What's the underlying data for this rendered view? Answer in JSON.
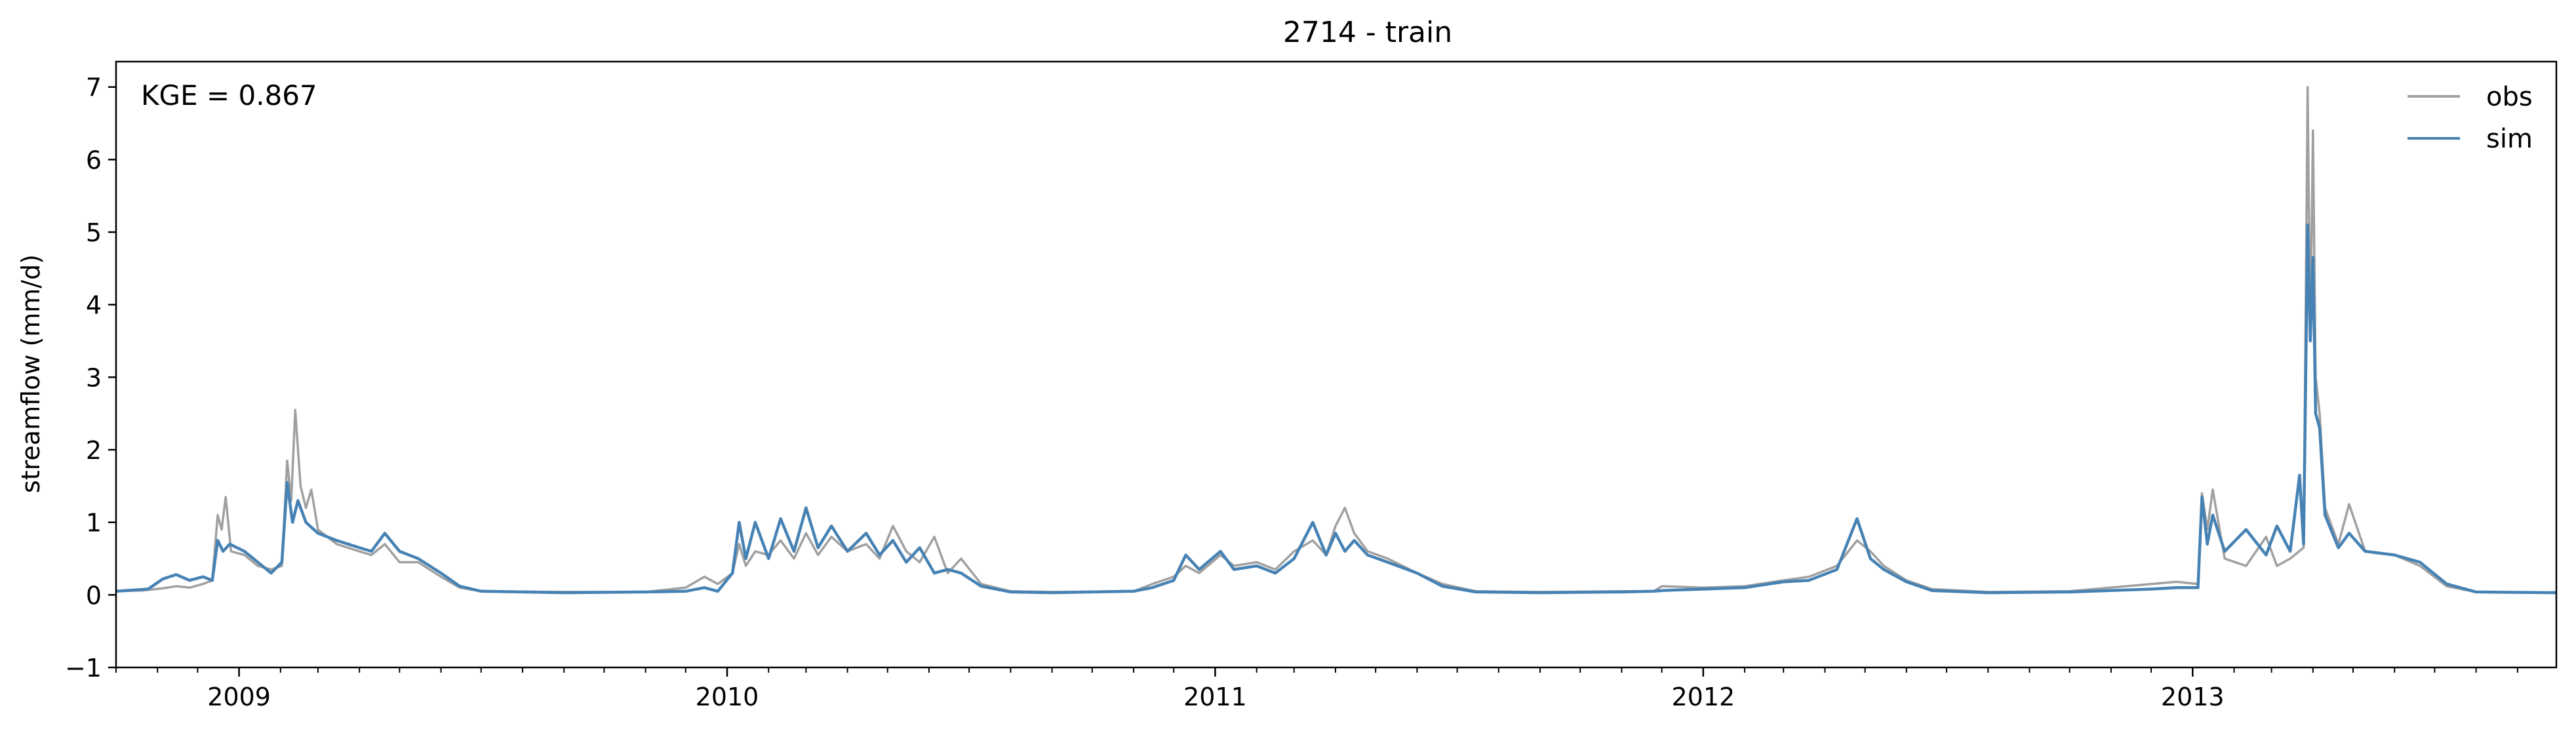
{
  "chart_data": {
    "type": "line",
    "title": "2714 - train",
    "xlabel": "",
    "ylabel": "streamflow (mm/d)",
    "annotation": "KGE = 0.867",
    "xlim": [
      "2008-10-01",
      "2013-09-30"
    ],
    "ylim": [
      -1,
      7.35
    ],
    "y_ticks": [
      -1,
      0,
      1,
      2,
      3,
      4,
      5,
      6,
      7
    ],
    "y_tick_labels": [
      "−1",
      "0",
      "1",
      "2",
      "3",
      "4",
      "5",
      "6",
      "7"
    ],
    "x_ticks": [
      "2009-01-01",
      "2010-01-01",
      "2011-01-01",
      "2012-01-01",
      "2013-01-01"
    ],
    "x_tick_labels": [
      "2009",
      "2010",
      "2011",
      "2012",
      "2013"
    ],
    "x_minor_ticks": "monthly",
    "grid": false,
    "legend": "top-right",
    "series": [
      {
        "name": "obs",
        "color": "#a0a0a0",
        "points": [
          [
            "2008-10-01",
            0.05
          ],
          [
            "2008-10-20",
            0.06
          ],
          [
            "2008-11-05",
            0.09
          ],
          [
            "2008-11-15",
            0.12
          ],
          [
            "2008-11-25",
            0.1
          ],
          [
            "2008-12-05",
            0.15
          ],
          [
            "2008-12-12",
            0.2
          ],
          [
            "2008-12-16",
            1.1
          ],
          [
            "2008-12-19",
            0.9
          ],
          [
            "2008-12-22",
            1.35
          ],
          [
            "2008-12-26",
            0.6
          ],
          [
            "2009-01-05",
            0.55
          ],
          [
            "2009-01-15",
            0.4
          ],
          [
            "2009-01-25",
            0.35
          ],
          [
            "2009-02-02",
            0.4
          ],
          [
            "2009-02-06",
            1.85
          ],
          [
            "2009-02-09",
            1.3
          ],
          [
            "2009-02-12",
            2.55
          ],
          [
            "2009-02-16",
            1.5
          ],
          [
            "2009-02-20",
            1.2
          ],
          [
            "2009-02-24",
            1.45
          ],
          [
            "2009-03-01",
            0.9
          ],
          [
            "2009-03-15",
            0.7
          ],
          [
            "2009-04-01",
            0.6
          ],
          [
            "2009-04-10",
            0.55
          ],
          [
            "2009-04-20",
            0.7
          ],
          [
            "2009-05-01",
            0.45
          ],
          [
            "2009-05-15",
            0.45
          ],
          [
            "2009-06-01",
            0.25
          ],
          [
            "2009-06-15",
            0.1
          ],
          [
            "2009-07-01",
            0.05
          ],
          [
            "2009-09-01",
            0.04
          ],
          [
            "2009-11-01",
            0.04
          ],
          [
            "2009-12-01",
            0.1
          ],
          [
            "2009-12-15",
            0.25
          ],
          [
            "2009-12-25",
            0.15
          ],
          [
            "2010-01-05",
            0.3
          ],
          [
            "2010-01-10",
            0.7
          ],
          [
            "2010-01-15",
            0.4
          ],
          [
            "2010-01-22",
            0.6
          ],
          [
            "2010-02-01",
            0.55
          ],
          [
            "2010-02-10",
            0.75
          ],
          [
            "2010-02-20",
            0.5
          ],
          [
            "2010-03-01",
            0.85
          ],
          [
            "2010-03-10",
            0.55
          ],
          [
            "2010-03-20",
            0.8
          ],
          [
            "2010-04-01",
            0.6
          ],
          [
            "2010-04-15",
            0.7
          ],
          [
            "2010-04-25",
            0.5
          ],
          [
            "2010-05-05",
            0.95
          ],
          [
            "2010-05-15",
            0.6
          ],
          [
            "2010-05-25",
            0.45
          ],
          [
            "2010-06-05",
            0.8
          ],
          [
            "2010-06-15",
            0.3
          ],
          [
            "2010-06-25",
            0.5
          ],
          [
            "2010-07-10",
            0.15
          ],
          [
            "2010-08-01",
            0.05
          ],
          [
            "2010-09-01",
            0.04
          ],
          [
            "2010-11-01",
            0.05
          ],
          [
            "2010-11-15",
            0.15
          ],
          [
            "2010-12-01",
            0.25
          ],
          [
            "2010-12-10",
            0.4
          ],
          [
            "2010-12-20",
            0.3
          ],
          [
            "2011-01-05",
            0.55
          ],
          [
            "2011-01-15",
            0.4
          ],
          [
            "2011-02-01",
            0.45
          ],
          [
            "2011-02-15",
            0.35
          ],
          [
            "2011-03-01",
            0.6
          ],
          [
            "2011-03-15",
            0.75
          ],
          [
            "2011-03-25",
            0.55
          ],
          [
            "2011-04-01",
            0.95
          ],
          [
            "2011-04-08",
            1.2
          ],
          [
            "2011-04-15",
            0.85
          ],
          [
            "2011-04-25",
            0.6
          ],
          [
            "2011-05-10",
            0.5
          ],
          [
            "2011-06-01",
            0.3
          ],
          [
            "2011-06-20",
            0.15
          ],
          [
            "2011-07-15",
            0.05
          ],
          [
            "2011-09-01",
            0.04
          ],
          [
            "2011-11-01",
            0.05
          ],
          [
            "2011-11-25",
            0.05
          ],
          [
            "2011-12-01",
            0.12
          ],
          [
            "2012-01-01",
            0.1
          ],
          [
            "2012-02-01",
            0.12
          ],
          [
            "2012-03-01",
            0.2
          ],
          [
            "2012-03-20",
            0.25
          ],
          [
            "2012-04-10",
            0.4
          ],
          [
            "2012-04-25",
            0.75
          ],
          [
            "2012-05-05",
            0.6
          ],
          [
            "2012-05-15",
            0.4
          ],
          [
            "2012-06-01",
            0.2
          ],
          [
            "2012-06-20",
            0.08
          ],
          [
            "2012-08-01",
            0.04
          ],
          [
            "2012-10-01",
            0.05
          ],
          [
            "2012-12-01",
            0.15
          ],
          [
            "2012-12-20",
            0.18
          ],
          [
            "2013-01-05",
            0.15
          ],
          [
            "2013-01-08",
            1.4
          ],
          [
            "2013-01-12",
            0.9
          ],
          [
            "2013-01-16",
            1.45
          ],
          [
            "2013-01-25",
            0.5
          ],
          [
            "2013-02-10",
            0.4
          ],
          [
            "2013-02-25",
            0.8
          ],
          [
            "2013-03-05",
            0.4
          ],
          [
            "2013-03-15",
            0.5
          ],
          [
            "2013-03-25",
            0.65
          ],
          [
            "2013-03-28",
            7.0
          ],
          [
            "2013-03-30",
            3.5
          ],
          [
            "2013-04-01",
            6.4
          ],
          [
            "2013-04-03",
            3.0
          ],
          [
            "2013-04-06",
            2.5
          ],
          [
            "2013-04-10",
            1.2
          ],
          [
            "2013-04-20",
            0.7
          ],
          [
            "2013-04-28",
            1.25
          ],
          [
            "2013-05-10",
            0.6
          ],
          [
            "2013-06-01",
            0.55
          ],
          [
            "2013-06-20",
            0.4
          ],
          [
            "2013-07-10",
            0.12
          ],
          [
            "2013-08-01",
            0.04
          ],
          [
            "2013-09-30",
            0.03
          ]
        ]
      },
      {
        "name": "sim",
        "color": "#4682b4",
        "points": [
          [
            "2008-10-01",
            0.05
          ],
          [
            "2008-10-25",
            0.08
          ],
          [
            "2008-11-05",
            0.22
          ],
          [
            "2008-11-15",
            0.28
          ],
          [
            "2008-11-25",
            0.2
          ],
          [
            "2008-12-05",
            0.25
          ],
          [
            "2008-12-12",
            0.2
          ],
          [
            "2008-12-16",
            0.75
          ],
          [
            "2008-12-20",
            0.6
          ],
          [
            "2008-12-25",
            0.7
          ],
          [
            "2009-01-05",
            0.6
          ],
          [
            "2009-01-15",
            0.45
          ],
          [
            "2009-01-25",
            0.3
          ],
          [
            "2009-02-02",
            0.45
          ],
          [
            "2009-02-06",
            1.55
          ],
          [
            "2009-02-10",
            1.0
          ],
          [
            "2009-02-14",
            1.3
          ],
          [
            "2009-02-20",
            1.0
          ],
          [
            "2009-03-01",
            0.85
          ],
          [
            "2009-03-15",
            0.75
          ],
          [
            "2009-04-01",
            0.65
          ],
          [
            "2009-04-10",
            0.6
          ],
          [
            "2009-04-20",
            0.85
          ],
          [
            "2009-05-01",
            0.6
          ],
          [
            "2009-05-15",
            0.5
          ],
          [
            "2009-06-01",
            0.3
          ],
          [
            "2009-06-15",
            0.12
          ],
          [
            "2009-07-01",
            0.05
          ],
          [
            "2009-09-01",
            0.03
          ],
          [
            "2009-11-01",
            0.04
          ],
          [
            "2009-12-01",
            0.05
          ],
          [
            "2009-12-15",
            0.1
          ],
          [
            "2009-12-25",
            0.05
          ],
          [
            "2010-01-05",
            0.3
          ],
          [
            "2010-01-10",
            1.0
          ],
          [
            "2010-01-15",
            0.5
          ],
          [
            "2010-01-22",
            1.0
          ],
          [
            "2010-02-01",
            0.5
          ],
          [
            "2010-02-10",
            1.05
          ],
          [
            "2010-02-20",
            0.6
          ],
          [
            "2010-03-01",
            1.2
          ],
          [
            "2010-03-10",
            0.65
          ],
          [
            "2010-03-20",
            0.95
          ],
          [
            "2010-04-01",
            0.6
          ],
          [
            "2010-04-15",
            0.85
          ],
          [
            "2010-04-25",
            0.55
          ],
          [
            "2010-05-05",
            0.75
          ],
          [
            "2010-05-15",
            0.45
          ],
          [
            "2010-05-25",
            0.65
          ],
          [
            "2010-06-05",
            0.3
          ],
          [
            "2010-06-15",
            0.35
          ],
          [
            "2010-06-25",
            0.3
          ],
          [
            "2010-07-10",
            0.12
          ],
          [
            "2010-08-01",
            0.04
          ],
          [
            "2010-09-01",
            0.03
          ],
          [
            "2010-11-01",
            0.05
          ],
          [
            "2010-11-15",
            0.1
          ],
          [
            "2010-12-01",
            0.2
          ],
          [
            "2010-12-10",
            0.55
          ],
          [
            "2010-12-20",
            0.35
          ],
          [
            "2011-01-05",
            0.6
          ],
          [
            "2011-01-15",
            0.35
          ],
          [
            "2011-02-01",
            0.4
          ],
          [
            "2011-02-15",
            0.3
          ],
          [
            "2011-03-01",
            0.5
          ],
          [
            "2011-03-15",
            1.0
          ],
          [
            "2011-03-25",
            0.55
          ],
          [
            "2011-04-01",
            0.85
          ],
          [
            "2011-04-08",
            0.6
          ],
          [
            "2011-04-15",
            0.75
          ],
          [
            "2011-04-25",
            0.55
          ],
          [
            "2011-05-10",
            0.45
          ],
          [
            "2011-06-01",
            0.3
          ],
          [
            "2011-06-20",
            0.12
          ],
          [
            "2011-07-15",
            0.04
          ],
          [
            "2011-09-01",
            0.03
          ],
          [
            "2011-11-01",
            0.04
          ],
          [
            "2011-11-25",
            0.05
          ],
          [
            "2011-12-01",
            0.06
          ],
          [
            "2012-01-01",
            0.08
          ],
          [
            "2012-02-01",
            0.1
          ],
          [
            "2012-03-01",
            0.18
          ],
          [
            "2012-03-20",
            0.2
          ],
          [
            "2012-04-10",
            0.35
          ],
          [
            "2012-04-25",
            1.05
          ],
          [
            "2012-05-05",
            0.5
          ],
          [
            "2012-05-15",
            0.35
          ],
          [
            "2012-06-01",
            0.18
          ],
          [
            "2012-06-20",
            0.06
          ],
          [
            "2012-08-01",
            0.03
          ],
          [
            "2012-10-01",
            0.04
          ],
          [
            "2012-12-01",
            0.08
          ],
          [
            "2012-12-20",
            0.1
          ],
          [
            "2013-01-05",
            0.1
          ],
          [
            "2013-01-08",
            1.35
          ],
          [
            "2013-01-12",
            0.7
          ],
          [
            "2013-01-16",
            1.1
          ],
          [
            "2013-01-25",
            0.6
          ],
          [
            "2013-02-10",
            0.9
          ],
          [
            "2013-02-25",
            0.55
          ],
          [
            "2013-03-05",
            0.95
          ],
          [
            "2013-03-15",
            0.6
          ],
          [
            "2013-03-22",
            1.65
          ],
          [
            "2013-03-25",
            0.7
          ],
          [
            "2013-03-28",
            5.1
          ],
          [
            "2013-03-30",
            3.5
          ],
          [
            "2013-04-01",
            4.65
          ],
          [
            "2013-04-03",
            2.5
          ],
          [
            "2013-04-06",
            2.3
          ],
          [
            "2013-04-10",
            1.1
          ],
          [
            "2013-04-20",
            0.65
          ],
          [
            "2013-04-28",
            0.85
          ],
          [
            "2013-05-10",
            0.6
          ],
          [
            "2013-06-01",
            0.55
          ],
          [
            "2013-06-20",
            0.45
          ],
          [
            "2013-07-10",
            0.15
          ],
          [
            "2013-08-01",
            0.04
          ],
          [
            "2013-09-30",
            0.03
          ]
        ]
      }
    ]
  }
}
